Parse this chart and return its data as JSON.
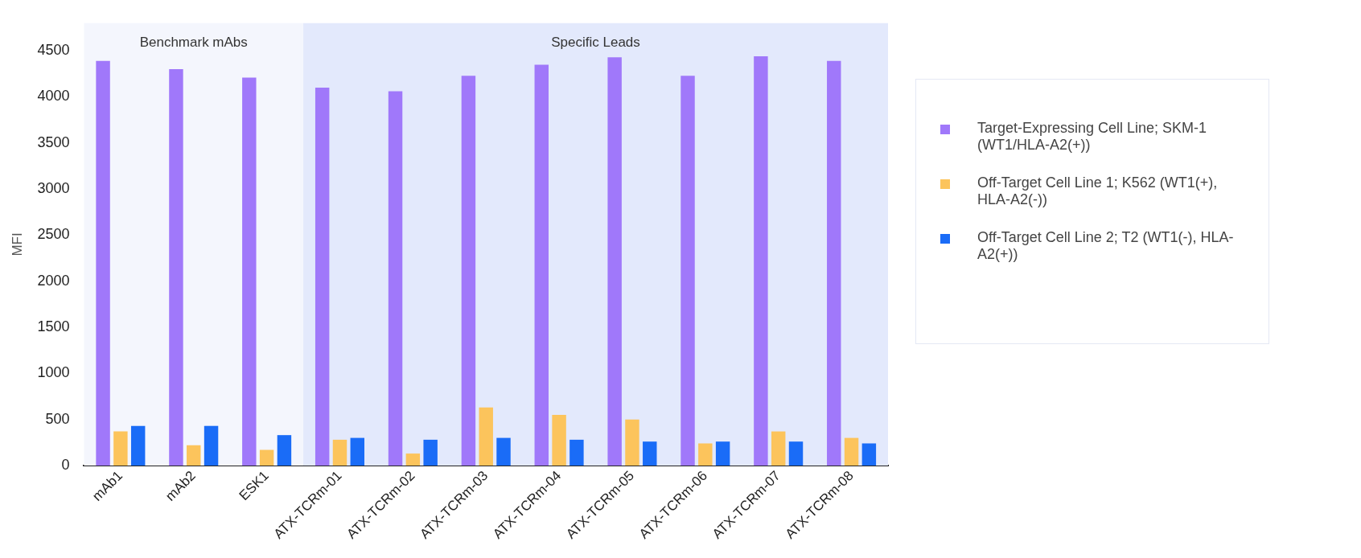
{
  "chart_data": {
    "type": "bar",
    "ylabel": "MFI",
    "categories": [
      "mAb1",
      "mAb2",
      "ESK1",
      "ATX-TCRm-01",
      "ATX-TCRm-02",
      "ATX-TCRm-03",
      "ATX-TCRm-04",
      "ATX-TCRm-05",
      "ATX-TCRm-06",
      "ATX-TCRm-07",
      "ATX-TCRm-08"
    ],
    "series": [
      {
        "name": "Target-Expressing Cell Line; SKM-1 (WT1/HLA-A2(+))",
        "color": "#a078fa",
        "values": [
          4390,
          4300,
          4210,
          4100,
          4060,
          4230,
          4350,
          4430,
          4230,
          4440,
          4390
        ]
      },
      {
        "name": "Off-Target Cell Line 1; K562 (WT1(+), HLA-A2(-))",
        "color": "#fcc45c",
        "values": [
          370,
          220,
          170,
          280,
          130,
          630,
          550,
          500,
          240,
          370,
          300
        ]
      },
      {
        "name": "Off-Target Cell Line 2; T2 (WT1(-), HLA-A2(+))",
        "color": "#1a6cf7",
        "values": [
          430,
          430,
          330,
          300,
          280,
          300,
          280,
          260,
          260,
          260,
          240
        ]
      }
    ],
    "ylim": [
      0,
      4800
    ],
    "yticks": [
      0,
      500,
      1000,
      1500,
      2000,
      2500,
      3000,
      3500,
      4000,
      4500
    ],
    "grid": false,
    "legend": "right",
    "bands": [
      {
        "axis": "x",
        "from": "mAb1",
        "to": "ESK1",
        "label": "Benchmark mAbs",
        "color": "#f4f6fd"
      },
      {
        "axis": "x",
        "from": "ATX-TCRm-01",
        "to": "ATX-TCRm-08",
        "label": "Specific Leads",
        "color": "#e3e9fc"
      }
    ]
  }
}
